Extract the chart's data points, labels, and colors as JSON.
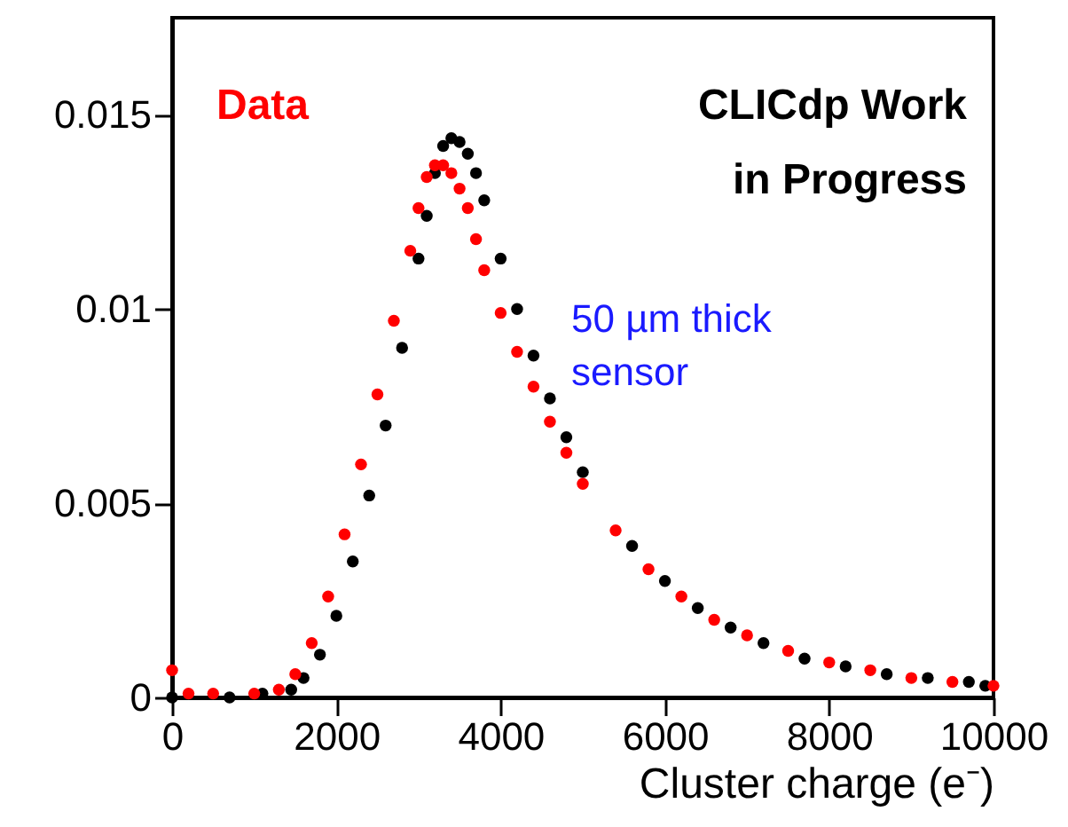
{
  "chart_data": {
    "type": "scatter",
    "xlabel": "Cluster charge (e⁻)",
    "xlim": [
      0,
      10000
    ],
    "ylim": [
      0,
      0.0175
    ],
    "xticks": [
      0,
      2000,
      4000,
      6000,
      8000,
      10000
    ],
    "yticks": [
      0,
      0.005,
      0.01,
      0.015
    ],
    "grid": false,
    "legend": "top left",
    "marker": "circle",
    "annotations": [
      "CLICdp Work\nin Progress",
      "50 µm thick\nsensor"
    ],
    "series": [
      {
        "name": "Data",
        "color": "#ff0000",
        "x": [
          0,
          200,
          500,
          1000,
          1300,
          1500,
          1700,
          1900,
          2100,
          2300,
          2500,
          2700,
          2900,
          3000,
          3100,
          3200,
          3300,
          3400,
          3500,
          3600,
          3700,
          3800,
          4000,
          4200,
          4400,
          4600,
          4800,
          5000,
          5400,
          5800,
          6200,
          6600,
          7000,
          7500,
          8000,
          8500,
          9000,
          9500,
          10000
        ],
        "values": [
          0.0007,
          0.0001,
          0.0001,
          0.0001,
          0.0002,
          0.0006,
          0.0014,
          0.0026,
          0.0042,
          0.006,
          0.0078,
          0.0097,
          0.0115,
          0.0126,
          0.0134,
          0.0137,
          0.0137,
          0.0135,
          0.0131,
          0.0126,
          0.0118,
          0.011,
          0.0099,
          0.0089,
          0.008,
          0.0071,
          0.0063,
          0.0055,
          0.0043,
          0.0033,
          0.0026,
          0.002,
          0.0016,
          0.0012,
          0.0009,
          0.0007,
          0.0005,
          0.0004,
          0.0003
        ]
      },
      {
        "color": "#000000",
        "x": [
          0,
          700,
          1100,
          1450,
          1600,
          1800,
          2000,
          2200,
          2400,
          2600,
          2800,
          3000,
          3100,
          3200,
          3300,
          3400,
          3500,
          3600,
          3700,
          3800,
          4000,
          4200,
          4400,
          4600,
          4800,
          5000,
          5600,
          6000,
          6400,
          6800,
          7200,
          7700,
          8200,
          8700,
          9200,
          9700,
          9900
        ],
        "values": [
          0.0,
          0.0,
          0.0001,
          0.0002,
          0.0005,
          0.0011,
          0.0021,
          0.0035,
          0.0052,
          0.007,
          0.009,
          0.0113,
          0.0124,
          0.0135,
          0.0142,
          0.0144,
          0.0143,
          0.014,
          0.0135,
          0.0128,
          0.0113,
          0.01,
          0.0088,
          0.0077,
          0.0067,
          0.0058,
          0.0039,
          0.003,
          0.0023,
          0.0018,
          0.0014,
          0.001,
          0.0008,
          0.0006,
          0.0005,
          0.0004,
          0.0003
        ]
      }
    ]
  }
}
